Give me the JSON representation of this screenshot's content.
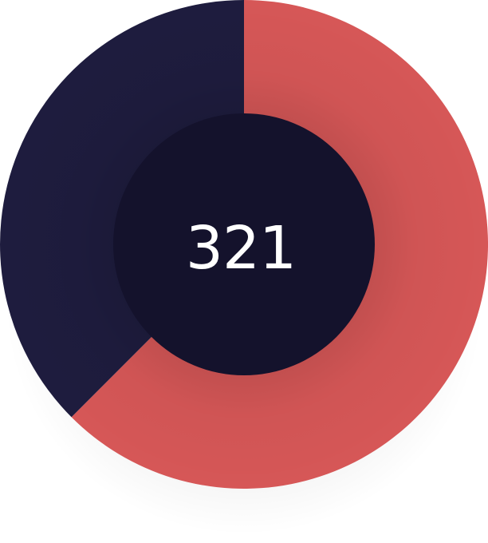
{
  "chart_data": {
    "type": "pie",
    "variant": "donut",
    "center_label": "321",
    "start_angle_deg": 0,
    "direction": "clockwise",
    "slices": [
      {
        "label": "",
        "value": 62.5,
        "color": "#d65757"
      },
      {
        "label": "",
        "value": 37.5,
        "color": "#1e1c3e"
      }
    ],
    "center_color": "#14122c",
    "center_text_color": "#ffffff",
    "legend": "none",
    "grid": false
  }
}
